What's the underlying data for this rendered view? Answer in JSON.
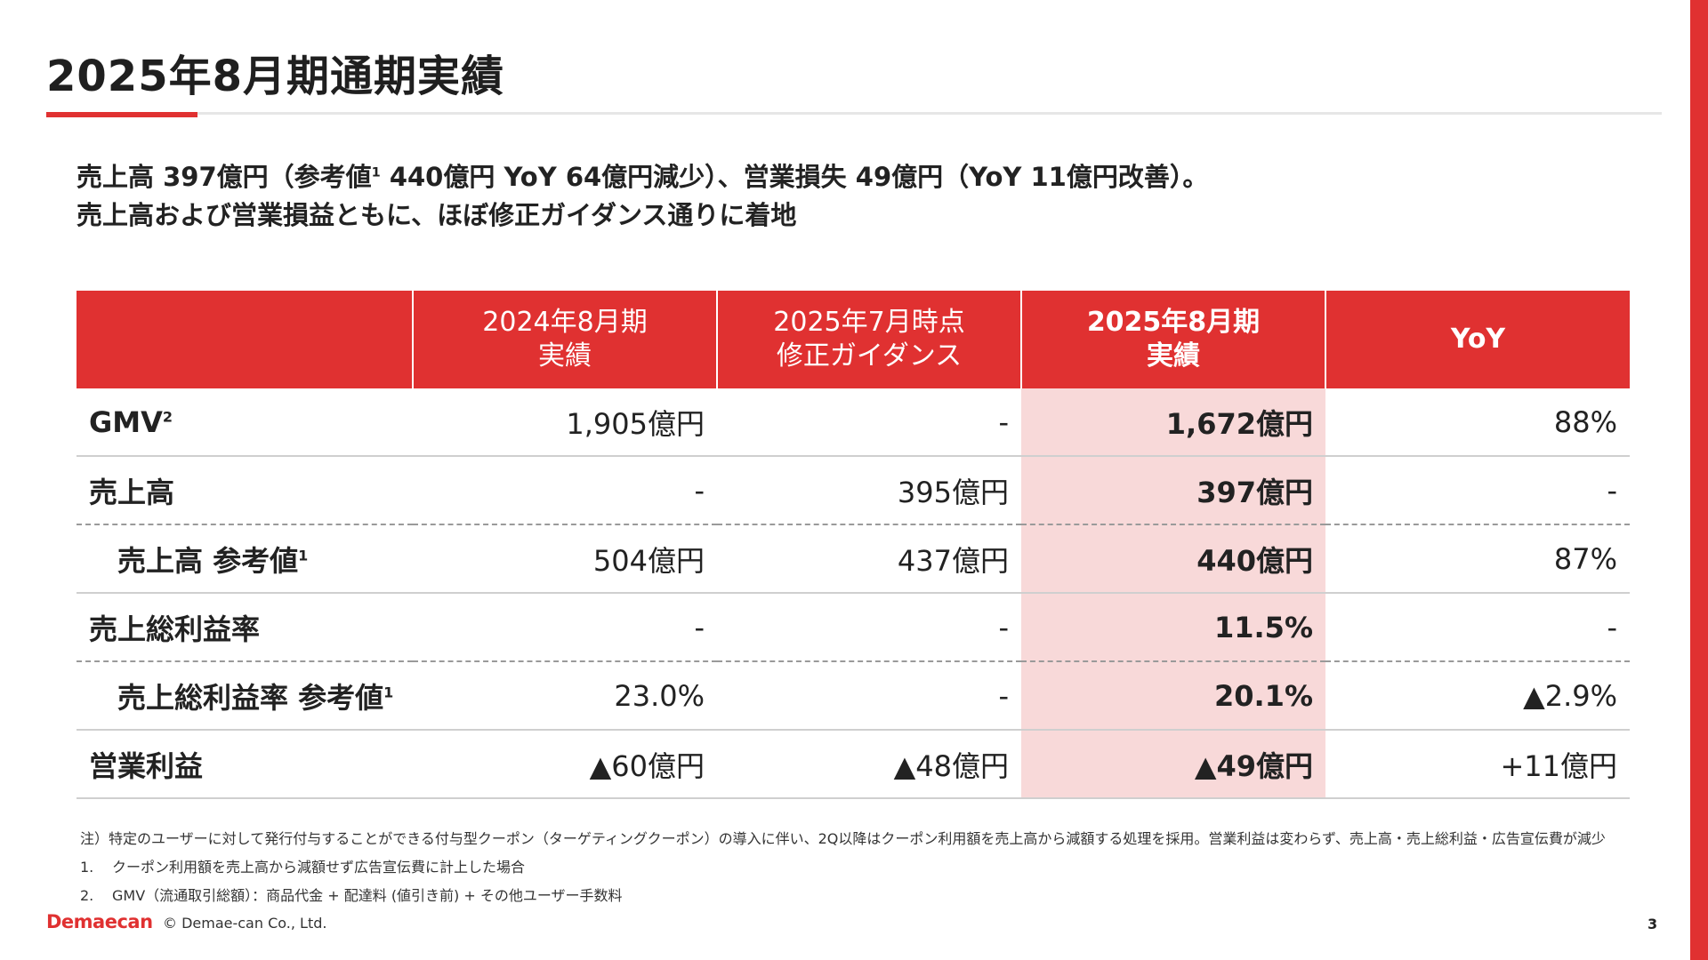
{
  "title": "2025年8月期通期実績",
  "summary": {
    "line1_a": "売上高 397億円（参考値",
    "line1_sup": "1",
    "line1_b": " 440億円 YoY 64億円減少）、営業損失 49億円（YoY 11億円改善）。",
    "line2": "売上高および営業損益ともに、ほぼ修正ガイダンス通りに着地"
  },
  "table": {
    "headers": [
      {
        "line1": "",
        "line2": ""
      },
      {
        "line1": "2024年8月期",
        "line2": "実績"
      },
      {
        "line1": "2025年7月時点",
        "line2": "修正ガイダンス"
      },
      {
        "line1": "2025年8月期",
        "line2": "実績"
      },
      {
        "line1": "YoY",
        "line2": ""
      }
    ],
    "rows": [
      {
        "label": "GMV",
        "sup": "2",
        "cells": [
          "1,905億円",
          "-",
          "1,672億円",
          "88%"
        ]
      },
      {
        "label": "売上高",
        "sup": "",
        "cells": [
          "-",
          "395億円",
          "397億円",
          "-"
        ]
      },
      {
        "label": "売上高 参考値",
        "sup": "1",
        "cells": [
          "504億円",
          "437億円",
          "440億円",
          "87%"
        ]
      },
      {
        "label": "売上総利益率",
        "sup": "",
        "cells": [
          "-",
          "-",
          "11.5%",
          "-"
        ]
      },
      {
        "label": "売上総利益率 参考値",
        "sup": "1",
        "cells": [
          "23.0%",
          "-",
          "20.1%",
          "▲2.9%"
        ]
      },
      {
        "label": "営業利益",
        "sup": "",
        "cells": [
          "▲60億円",
          "▲48億円",
          "▲49億円",
          "+11億円"
        ]
      }
    ]
  },
  "notes": {
    "main": "注）特定のユーザーに対して発行付与することができる付与型クーポン（ターゲティングクーポン）の導入に伴い、2Q以降はクーポン利用額を売上高から減額する処理を採用。営業利益は変わらず、売上高・売上総利益・広告宣伝費が減少",
    "items": [
      {
        "num": "1.",
        "text": "クーポン利用額を売上高から減額せず広告宣伝費に計上した場合"
      },
      {
        "num": "2.",
        "text": "GMV（流通取引総額）：商品代金 + 配達料 (値引き前) + その他ユーザー手数料"
      }
    ]
  },
  "footer": {
    "logo": "Demaecan",
    "copyright": "© Demae-can Co., Ltd.",
    "page": "3"
  },
  "colors": {
    "accent": "#e03131",
    "highlight": "#f8d9d9"
  }
}
